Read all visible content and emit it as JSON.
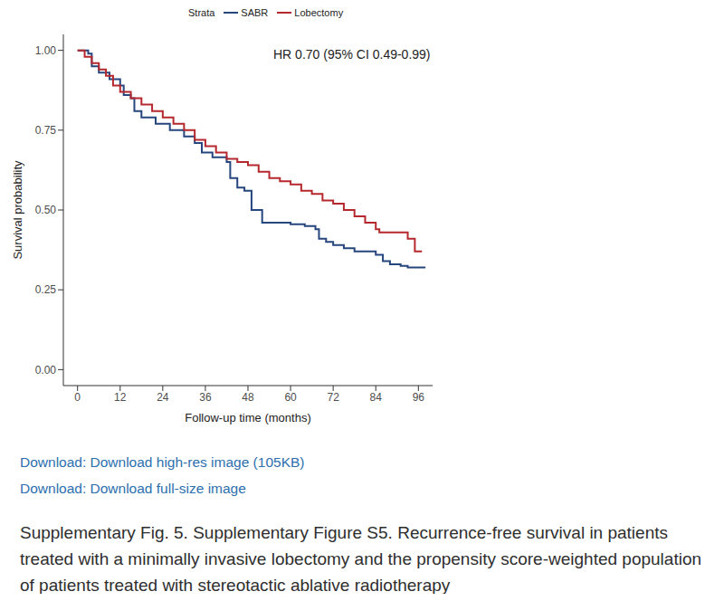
{
  "chart_data": {
    "type": "line",
    "x_label": "Follow-up time (months)",
    "y_label": "Survival probability",
    "legend_title": "Strata",
    "annotation": "HR 0.70 (95% CI 0.49-0.99)",
    "xlim": [
      -4,
      100
    ],
    "xticks": [
      0,
      12,
      24,
      36,
      48,
      60,
      72,
      84,
      96
    ],
    "ylim": [
      -0.05,
      1.05
    ],
    "yticks": [
      {
        "value": 0,
        "label": "0.00"
      },
      {
        "value": 0.25,
        "label": "0.25"
      },
      {
        "value": 0.5,
        "label": "0.50"
      },
      {
        "value": 0.75,
        "label": "0.75"
      },
      {
        "value": 1,
        "label": "1.00"
      }
    ],
    "grid": false,
    "legend": "top",
    "line_style": "step",
    "series": [
      {
        "name": "SABR",
        "color": "#26467e",
        "x": [
          0,
          3,
          4,
          6,
          9,
          12,
          13,
          15,
          16,
          18,
          22,
          26,
          30,
          33,
          35,
          38,
          42,
          43,
          45,
          47,
          49,
          52,
          60,
          64,
          67,
          68,
          70,
          72,
          75,
          78,
          84,
          86,
          88,
          91,
          93,
          98
        ],
        "values": [
          1.0,
          0.99,
          0.95,
          0.93,
          0.91,
          0.89,
          0.86,
          0.85,
          0.81,
          0.79,
          0.77,
          0.75,
          0.73,
          0.71,
          0.68,
          0.665,
          0.65,
          0.6,
          0.57,
          0.56,
          0.5,
          0.46,
          0.455,
          0.45,
          0.44,
          0.41,
          0.4,
          0.39,
          0.38,
          0.37,
          0.36,
          0.34,
          0.33,
          0.325,
          0.32,
          0.32
        ]
      },
      {
        "name": "Lobectomy",
        "color": "#b5282e",
        "x": [
          0,
          2,
          4,
          6,
          8,
          10,
          12,
          15,
          18,
          21,
          24,
          27,
          30,
          33,
          36,
          39,
          42,
          45,
          48,
          51,
          54,
          57,
          60,
          63,
          66,
          69,
          72,
          75,
          78,
          81,
          84,
          85,
          93,
          95,
          97
        ],
        "values": [
          1.0,
          0.98,
          0.96,
          0.94,
          0.92,
          0.89,
          0.87,
          0.85,
          0.83,
          0.81,
          0.79,
          0.77,
          0.75,
          0.72,
          0.7,
          0.68,
          0.66,
          0.65,
          0.64,
          0.62,
          0.6,
          0.59,
          0.58,
          0.56,
          0.55,
          0.53,
          0.52,
          0.5,
          0.48,
          0.46,
          0.44,
          0.43,
          0.41,
          0.37,
          0.37
        ]
      }
    ]
  },
  "links": [
    "Download: Download high-res image (105KB)",
    "Download: Download full-size image"
  ],
  "caption": "Supplementary Fig. 5. Supplementary Figure S5. Recurrence-free survival in patients treated with a minimally invasive lobectomy and the propensity score-weighted population of patients treated with stereotactic ablative radiotherapy"
}
